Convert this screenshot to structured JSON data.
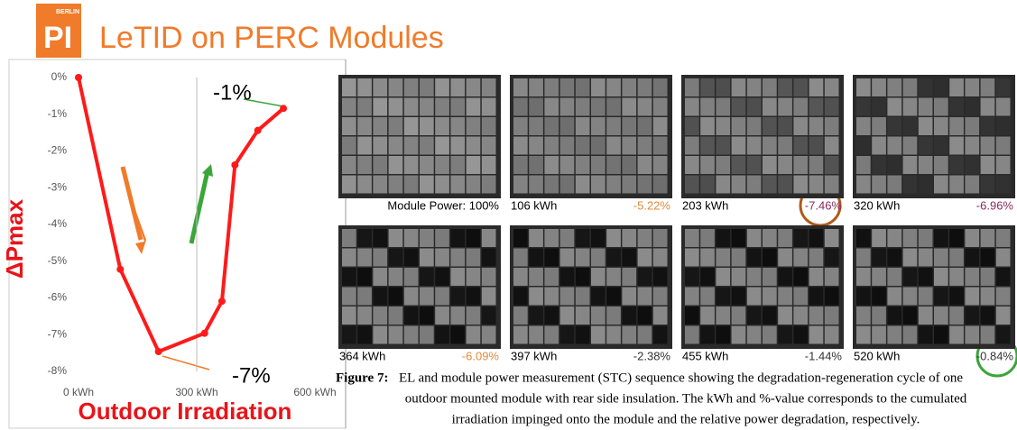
{
  "logo": {
    "top": "BERLIN",
    "main": "PI"
  },
  "slide_title": "LeTID on PERC Modules",
  "chart_data": {
    "type": "line",
    "x": [
      0,
      106,
      203,
      320,
      364,
      397,
      455,
      520
    ],
    "series": [
      {
        "name": "ΔPmax",
        "color": "#ff1a1a",
        "values": [
          0,
          -5.22,
          -7.46,
          -6.96,
          -6.09,
          -2.38,
          -1.44,
          -0.84
        ]
      }
    ],
    "xlim": [
      0,
      600
    ],
    "xticks": [
      {
        "value": 0,
        "label": "0 kWh"
      },
      {
        "value": 300,
        "label": "300 kWh"
      },
      {
        "value": 600,
        "label": "600 kWh"
      }
    ],
    "ylim": [
      -8,
      0
    ],
    "yticks": [
      {
        "value": 0,
        "label": "0%"
      },
      {
        "value": -1,
        "label": "-1%"
      },
      {
        "value": -2,
        "label": "-2%"
      },
      {
        "value": -3,
        "label": "-3%"
      },
      {
        "value": -4,
        "label": "-4%"
      },
      {
        "value": -5,
        "label": "-5%"
      },
      {
        "value": -6,
        "label": "-6%"
      },
      {
        "value": -7,
        "label": "-7%"
      },
      {
        "value": -8,
        "label": "-8%"
      }
    ],
    "y_label": "ΔPmax",
    "x_label": "Outdoor Irradiation",
    "annotations": [
      "-1%",
      "-7%"
    ],
    "grid": true
  },
  "panels": [
    {
      "label": "Module Power: 100%"
    },
    {
      "label": "106 kWh",
      "value": "-5.22%",
      "color": "#e08a3c"
    },
    {
      "label": "203 kWh",
      "value": "-7.46%",
      "color": "#8a2a5a"
    },
    {
      "label": "320 kWh",
      "value": "-6.96%",
      "color": "#8a2a5a"
    },
    {
      "label": "364 kWh",
      "value": "-6.09%",
      "color": "#e08a3c"
    },
    {
      "label": "397 kWh",
      "value": "-2.38%",
      "color": "#333333"
    },
    {
      "label": "455 kWh",
      "value": "-1.44%",
      "color": "#333333"
    },
    {
      "label": "520 kWh",
      "value": "-0.84%",
      "color": "#333333"
    }
  ],
  "caption": {
    "prefix": "Figure 7:",
    "lines": [
      "EL and module power measurement (STC) sequence showing the degradation-regeneration cycle of one",
      "outdoor mounted module with rear side insulation. The kWh and %-value corresponds to the cumulated",
      "irradiation impinged onto the module and the relative power degradation, respectively."
    ]
  }
}
